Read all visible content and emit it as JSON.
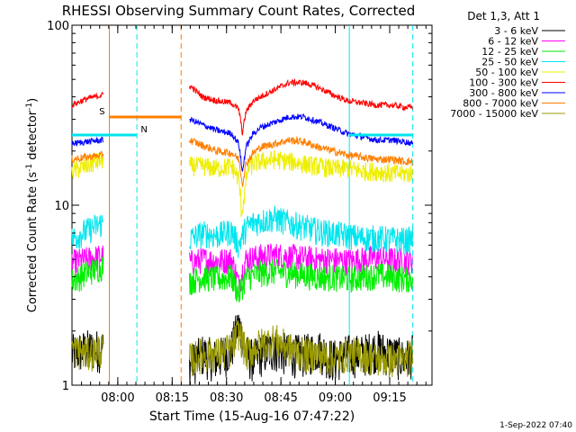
{
  "chart_data": {
    "type": "line",
    "title": "RHESSI Observing Summary Count Rates, Corrected",
    "xlabel": "Start Time (15-Aug-16 07:47:22)",
    "ylabel_main": "Corrected Count Rate (s",
    "ylabel_sup1": "-1",
    "ylabel_mid": " detector",
    "ylabel_sup2": "-1",
    "ylabel_end": ")",
    "yscale": "log",
    "ylim": [
      1,
      100
    ],
    "ytick_labels": [
      "1",
      "10",
      "100"
    ],
    "xlim": [
      "07:47:22",
      "09:26:40"
    ],
    "xtick_labels": [
      "08:00",
      "08:15",
      "08:30",
      "08:45",
      "09:00",
      "09:15"
    ],
    "xtick_minutes": [
      12.63,
      27.63,
      42.63,
      57.63,
      72.63,
      87.63
    ],
    "x_minutes_range": [
      0,
      99.3
    ],
    "legend_title": "Det 1,3, Att 1",
    "legend_position": "right",
    "data_gap_minutes": [
      [
        8.7,
        32.3
      ]
    ],
    "annotations": [
      {
        "text": "S",
        "color": "#ff7f00",
        "start_min": 10.3,
        "end_min": 30.1,
        "level": 78
      },
      {
        "text": "N",
        "color": "#00e5ee",
        "start_min": 0.0,
        "end_min": 17.9,
        "level": 73
      },
      {
        "text": "",
        "color": "#00e5ee",
        "start_min": 76.5,
        "end_min": 94.0,
        "level": 73
      }
    ],
    "vlines": [
      {
        "min": 10.3,
        "color": "#ff7f00",
        "dash": false
      },
      {
        "min": 30.1,
        "color": "#ff7f00",
        "dash": true
      },
      {
        "min": 17.9,
        "color": "#00e5ee",
        "dash": true
      },
      {
        "min": 76.5,
        "color": "#00e5ee",
        "dash": false
      },
      {
        "min": 94.0,
        "color": "#00e5ee",
        "dash": true
      }
    ],
    "series": [
      {
        "name": "3 - 6 keV",
        "color": "#000000",
        "x": [
          0,
          4,
          8.5,
          32.5,
          36,
          40,
          44,
          46,
          48,
          50,
          52,
          56,
          60,
          64,
          68,
          72,
          76,
          80,
          84,
          88,
          92,
          94
        ],
        "values": [
          1.5,
          1.6,
          1.6,
          1.3,
          1.5,
          1.4,
          1.6,
          2.2,
          1.5,
          1.4,
          1.5,
          1.6,
          1.5,
          1.5,
          1.6,
          1.4,
          1.5,
          1.5,
          1.6,
          1.5,
          1.4,
          1.5
        ]
      },
      {
        "name": "6 - 12 keV",
        "color": "#ff00ff",
        "x": [
          0,
          4,
          8.5,
          32.5,
          36,
          40,
          44,
          46,
          48,
          50,
          52,
          56,
          60,
          64,
          68,
          72,
          76,
          80,
          84,
          88,
          92,
          94
        ],
        "values": [
          4.8,
          5.0,
          5.2,
          4.8,
          5.0,
          4.9,
          5.0,
          3.6,
          5.0,
          5.1,
          5.2,
          5.3,
          5.2,
          5.1,
          5.0,
          5.0,
          4.9,
          5.0,
          5.1,
          5.0,
          4.9,
          5.0
        ]
      },
      {
        "name": "12 - 25 keV",
        "color": "#00ee00",
        "x": [
          0,
          4,
          8.5,
          32.5,
          36,
          40,
          44,
          46,
          48,
          50,
          52,
          56,
          60,
          64,
          68,
          72,
          76,
          80,
          84,
          88,
          92,
          94
        ],
        "values": [
          3.8,
          4.2,
          4.6,
          3.8,
          4.0,
          3.9,
          4.0,
          3.2,
          4.0,
          4.1,
          4.2,
          4.3,
          4.2,
          4.1,
          4.0,
          4.0,
          3.9,
          4.0,
          4.1,
          4.0,
          3.9,
          4.0
        ]
      },
      {
        "name": "25 - 50 keV",
        "color": "#00e5ee",
        "x": [
          0,
          4,
          8.5,
          32.5,
          36,
          40,
          44,
          46,
          48,
          50,
          52,
          56,
          60,
          64,
          68,
          72,
          76,
          80,
          84,
          88,
          92,
          94
        ],
        "values": [
          6.5,
          7.2,
          8.0,
          6.5,
          7.0,
          6.8,
          7.2,
          6.0,
          7.5,
          8.0,
          8.2,
          8.5,
          8.0,
          7.6,
          7.2,
          7.0,
          6.8,
          6.6,
          6.6,
          6.5,
          6.4,
          6.5
        ]
      },
      {
        "name": "50 - 100 keV",
        "color": "#eeee00",
        "x": [
          0,
          4,
          8.5,
          32.5,
          36,
          40,
          44,
          46,
          46.8,
          47.6,
          48.5,
          50,
          52,
          56,
          60,
          64,
          68,
          72,
          76,
          80,
          84,
          88,
          92,
          94
        ],
        "values": [
          15.5,
          16.5,
          18.0,
          16.5,
          16.5,
          16.0,
          16.5,
          14.0,
          9.0,
          11.5,
          16.0,
          17.0,
          17.5,
          18.0,
          17.5,
          17.0,
          16.5,
          16.0,
          16.0,
          15.5,
          15.5,
          15.0,
          15.0,
          15.0
        ]
      },
      {
        "name": "100 - 300 keV",
        "color": "#ff0000",
        "x": [
          0,
          4,
          8.5,
          32.5,
          36,
          40,
          44,
          46,
          47,
          48,
          50,
          52,
          56,
          60,
          64,
          68,
          72,
          76,
          80,
          84,
          88,
          92,
          94
        ],
        "values": [
          36,
          39,
          41,
          46,
          40,
          38,
          37,
          34,
          25,
          33,
          38,
          40,
          44,
          48,
          48,
          45,
          41,
          38,
          37,
          36,
          36,
          35,
          35
        ]
      },
      {
        "name": "300 - 800 keV",
        "color": "#0000ff",
        "x": [
          0,
          4,
          8.5,
          32.5,
          36,
          40,
          44,
          46,
          47,
          48,
          50,
          52,
          56,
          60,
          64,
          68,
          72,
          76,
          80,
          84,
          88,
          92,
          94
        ],
        "values": [
          22,
          22.5,
          23,
          30,
          28,
          26,
          25,
          22,
          15,
          21,
          25,
          27,
          29,
          31,
          31,
          29,
          27,
          25,
          24,
          23,
          23,
          22.5,
          22
        ]
      },
      {
        "name": "800 - 7000 keV",
        "color": "#ff7f00",
        "x": [
          0,
          4,
          8.5,
          32.5,
          36,
          40,
          44,
          46,
          47,
          48,
          50,
          52,
          56,
          60,
          64,
          68,
          72,
          76,
          80,
          84,
          88,
          92,
          94
        ],
        "values": [
          18,
          18.5,
          19,
          23,
          21.5,
          20,
          19.5,
          18,
          13,
          17,
          19.5,
          21,
          22,
          23,
          22.5,
          21,
          20,
          19,
          18.5,
          18,
          18,
          17.5,
          17.5
        ]
      },
      {
        "name": "7000 - 15000 keV",
        "color": "#999900",
        "x": [
          0,
          4,
          8.5,
          32.5,
          36,
          40,
          44,
          46,
          48,
          50,
          52,
          56,
          60,
          64,
          68,
          72,
          76,
          80,
          84,
          88,
          92,
          94
        ],
        "values": [
          1.6,
          1.5,
          1.6,
          1.4,
          1.5,
          1.5,
          1.6,
          2.0,
          1.5,
          1.6,
          1.7,
          1.8,
          1.6,
          1.5,
          1.5,
          1.4,
          1.5,
          1.5,
          1.4,
          1.4,
          1.4,
          1.5
        ]
      }
    ]
  },
  "footer": {
    "timestamp": "1-Sep-2022 07:40"
  }
}
